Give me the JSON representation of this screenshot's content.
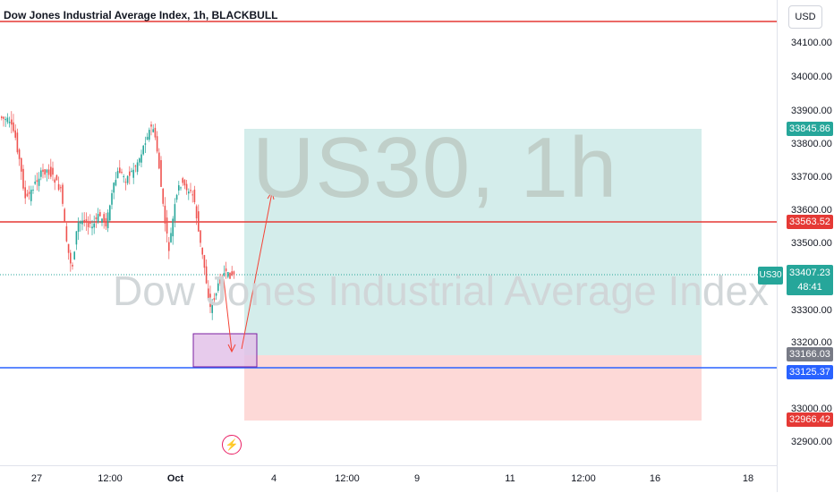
{
  "header": {
    "title": "Dow Jones Industrial Average Index, 1h, BLACKBULL"
  },
  "watermark": {
    "symbol_interval": "US30, 1h",
    "description": "Dow Jones Industrial Average Index"
  },
  "price_axis": {
    "currency_button": "USD",
    "ticks": [
      "34100.00",
      "34000.00",
      "33900.00",
      "33800.00",
      "33700.00",
      "33600.00",
      "33500.00",
      "33300.00",
      "33200.00",
      "33000.00",
      "32900.00"
    ],
    "tags": {
      "target": "33845.86",
      "resistance": "33563.52",
      "last_price": "33407.23",
      "countdown": "48:41",
      "entry": "33166.03",
      "support": "33125.37",
      "stop": "32966.42"
    },
    "symbol_tag": "US30"
  },
  "time_axis": {
    "labels": [
      "27",
      "12:00",
      "Oct",
      "4",
      "12:00",
      "9",
      "11",
      "12:00",
      "16",
      "18"
    ]
  },
  "colors": {
    "up": "#26a69a",
    "down": "#ef5350",
    "support_line": "#2962ff",
    "resistance_line": "#e53935",
    "profit_zone": "#26a69a",
    "loss_zone": "#f7a9b0",
    "box": "#e1bee7"
  },
  "icons": {
    "alert": "lightning-icon"
  }
}
